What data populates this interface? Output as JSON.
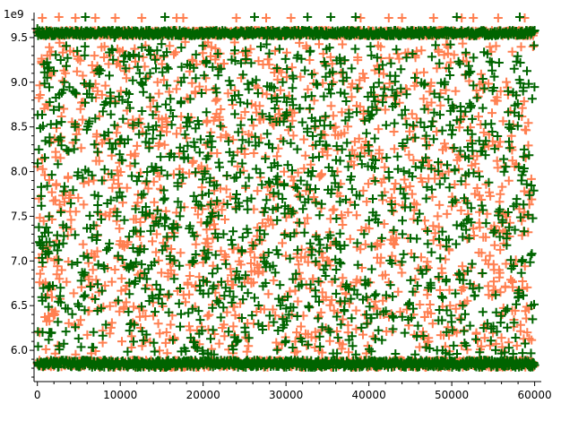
{
  "chart_data": {
    "type": "scatter",
    "title": "",
    "xlabel": "",
    "ylabel": "",
    "y_scale_label": "1e9",
    "xlim": [
      -400,
      60800
    ],
    "ylim": [
      5.65,
      9.78
    ],
    "x_ticks": [
      {
        "value": 0,
        "label": "0"
      },
      {
        "value": 10000,
        "label": "10000"
      },
      {
        "value": 20000,
        "label": "20000"
      },
      {
        "value": 30000,
        "label": "30000"
      },
      {
        "value": 40000,
        "label": "40000"
      },
      {
        "value": 50000,
        "label": "50000"
      },
      {
        "value": 60000,
        "label": "60000"
      }
    ],
    "y_ticks": [
      {
        "value": 6.0,
        "label": "6.0"
      },
      {
        "value": 6.5,
        "label": "6.5"
      },
      {
        "value": 7.0,
        "label": "7.0"
      },
      {
        "value": 7.5,
        "label": "7.5"
      },
      {
        "value": 8.0,
        "label": "8.0"
      },
      {
        "value": 8.5,
        "label": "8.5"
      },
      {
        "value": 9.0,
        "label": "9.0"
      },
      {
        "value": 9.5,
        "label": "9.5"
      }
    ],
    "grid": false,
    "marker": "plus",
    "series": [
      {
        "color": "#ff7f50",
        "band_low": 5.85,
        "band_high": 9.55,
        "x_max": 59900,
        "points": [
          [
            600,
            9.72
          ],
          [
            2600,
            9.73
          ],
          [
            4600,
            9.72
          ],
          [
            7000,
            9.72
          ],
          [
            9400,
            9.72
          ],
          [
            12600,
            9.72
          ],
          [
            16800,
            9.72
          ],
          [
            17600,
            9.72
          ],
          [
            24000,
            9.72
          ],
          [
            27600,
            9.72
          ],
          [
            30600,
            9.72
          ],
          [
            39000,
            9.72
          ],
          [
            42400,
            9.72
          ],
          [
            44000,
            9.72
          ],
          [
            47800,
            9.72
          ],
          [
            51200,
            9.72
          ],
          [
            52600,
            9.72
          ],
          [
            55600,
            9.72
          ],
          [
            58800,
            9.72
          ],
          [
            1200,
            9.3
          ],
          [
            3400,
            9.1
          ],
          [
            5200,
            8.7
          ],
          [
            8100,
            9.4
          ],
          [
            11800,
            8.2
          ],
          [
            14500,
            9.0
          ],
          [
            19200,
            9.2
          ],
          [
            22800,
            7.8
          ],
          [
            25300,
            9.3
          ],
          [
            28700,
            8.6
          ],
          [
            33400,
            9.1
          ],
          [
            36200,
            8.0
          ],
          [
            41100,
            8.8
          ],
          [
            45600,
            9.3
          ],
          [
            48300,
            7.5
          ],
          [
            53700,
            9.0
          ],
          [
            57200,
            8.4
          ],
          [
            2100,
            6.4
          ],
          [
            6700,
            6.9
          ],
          [
            10200,
            6.1
          ],
          [
            15700,
            6.6
          ],
          [
            20300,
            7.2
          ],
          [
            26100,
            6.3
          ],
          [
            31800,
            6.8
          ],
          [
            37500,
            6.2
          ],
          [
            43200,
            7.0
          ],
          [
            49800,
            6.5
          ],
          [
            55100,
            6.9
          ],
          [
            59100,
            6.2
          ]
        ]
      },
      {
        "color": "#006400",
        "band_low": 5.85,
        "band_high": 9.55,
        "x_max": 60000,
        "points": [
          [
            5800,
            9.73
          ],
          [
            15400,
            9.73
          ],
          [
            26200,
            9.73
          ],
          [
            32600,
            9.73
          ],
          [
            35400,
            9.73
          ],
          [
            38400,
            9.73
          ],
          [
            50600,
            9.73
          ],
          [
            58200,
            9.73
          ],
          [
            0,
            9.6
          ],
          [
            800,
            9.2
          ],
          [
            4300,
            8.9
          ],
          [
            9300,
            9.5
          ],
          [
            13400,
            8.5
          ],
          [
            18100,
            9.2
          ],
          [
            23500,
            8.8
          ],
          [
            29600,
            9.0
          ],
          [
            34800,
            8.3
          ],
          [
            40200,
            9.4
          ],
          [
            46700,
            8.7
          ],
          [
            52100,
            9.1
          ],
          [
            56800,
            8.9
          ],
          [
            3100,
            7.4
          ],
          [
            7800,
            7.9
          ],
          [
            12100,
            7.1
          ],
          [
            17300,
            7.6
          ],
          [
            21900,
            8.1
          ],
          [
            27400,
            7.3
          ],
          [
            32900,
            7.8
          ],
          [
            38600,
            7.2
          ],
          [
            44400,
            7.7
          ],
          [
            50600,
            7.4
          ],
          [
            58400,
            7.9
          ],
          [
            1500,
            6.2
          ],
          [
            5600,
            6.6
          ],
          [
            11300,
            6.3
          ],
          [
            16500,
            6.8
          ],
          [
            24100,
            6.1
          ],
          [
            30200,
            6.6
          ],
          [
            39700,
            6.4
          ],
          [
            47200,
            6.7
          ],
          [
            54300,
            6.3
          ],
          [
            59600,
            6.5
          ]
        ]
      }
    ]
  }
}
